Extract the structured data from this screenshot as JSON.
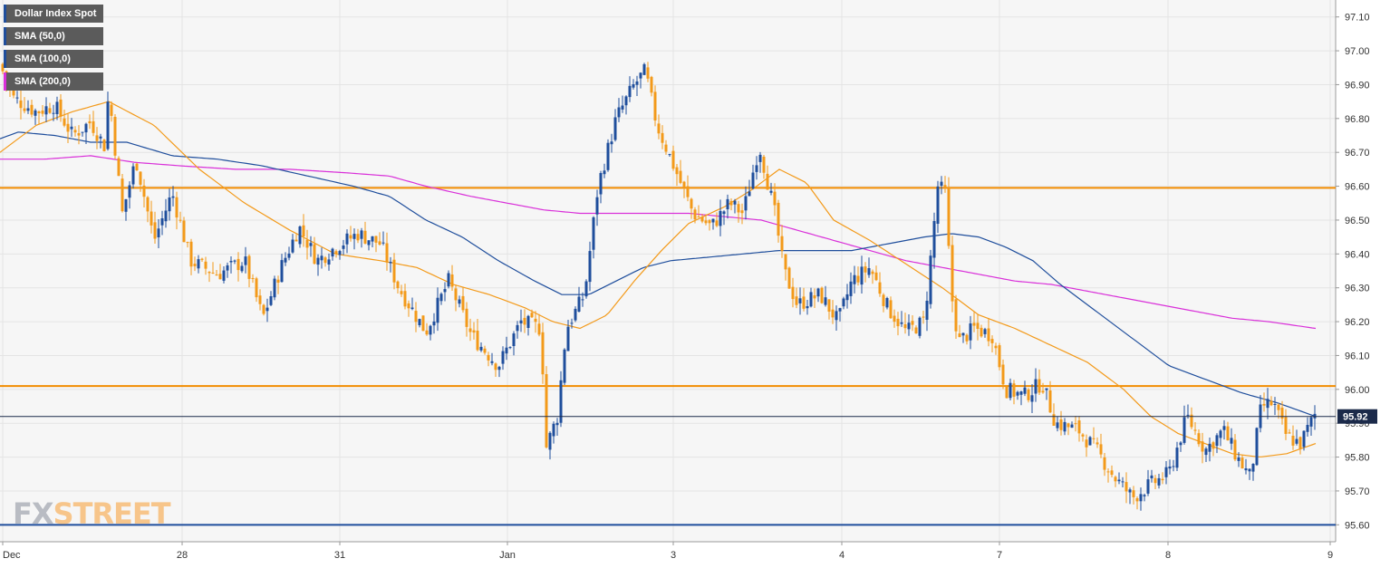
{
  "legend": [
    {
      "label": "Dollar Index Spot",
      "color": "#1f4e9c"
    },
    {
      "label": "SMA (50,0)",
      "color": "#1f4e9c"
    },
    {
      "label": "SMA (100,0)",
      "color": "#1f4e9c"
    },
    {
      "label": "SMA (200,0)",
      "color": "#d930d9"
    }
  ],
  "logo": {
    "part1": "FX",
    "part2": "STREET"
  },
  "chart_data": {
    "type": "candlestick",
    "ylim": [
      95.55,
      97.15
    ],
    "y_ticks": [
      "97.10",
      "97.00",
      "96.90",
      "96.80",
      "96.70",
      "96.60",
      "96.50",
      "96.40",
      "96.30",
      "96.20",
      "96.10",
      "96.00",
      "95.90",
      "95.80",
      "95.70",
      "95.60"
    ],
    "x_ticks": [
      "Dec",
      "28",
      "31",
      "Jan",
      "3",
      "4",
      "7",
      "8",
      "9"
    ],
    "last_price": "95.92",
    "horizontal_levels": [
      {
        "value": 96.595,
        "color": "#f28c00"
      },
      {
        "value": 96.01,
        "color": "#f28c00"
      },
      {
        "value": 95.6,
        "color": "#1f4e9c"
      }
    ],
    "colors": {
      "up": "#1f4e9c",
      "down": "#f39a1a",
      "sma_a": "#f39a1a",
      "sma_b": "#1f4e9c",
      "sma_c": "#d930d9",
      "grid": "#e4e4e4",
      "plot_bg": "#f6f6f6"
    },
    "close_anchors": [
      [
        0,
        96.96
      ],
      [
        15,
        96.86
      ],
      [
        40,
        96.82
      ],
      [
        60,
        96.84
      ],
      [
        80,
        96.75
      ],
      [
        100,
        96.79
      ],
      [
        115,
        96.72
      ],
      [
        120,
        96.88
      ],
      [
        135,
        96.52
      ],
      [
        150,
        96.68
      ],
      [
        170,
        96.44
      ],
      [
        190,
        96.58
      ],
      [
        210,
        96.38
      ],
      [
        240,
        96.34
      ],
      [
        270,
        96.38
      ],
      [
        290,
        96.21
      ],
      [
        310,
        96.36
      ],
      [
        330,
        96.48
      ],
      [
        350,
        96.38
      ],
      [
        370,
        96.42
      ],
      [
        395,
        96.46
      ],
      [
        420,
        96.43
      ],
      [
        440,
        96.3
      ],
      [
        470,
        96.17
      ],
      [
        495,
        96.32
      ],
      [
        520,
        96.16
      ],
      [
        550,
        96.07
      ],
      [
        575,
        96.2
      ],
      [
        597,
        96.18
      ],
      [
        603,
        95.83
      ],
      [
        615,
        95.92
      ],
      [
        625,
        96.18
      ],
      [
        645,
        96.28
      ],
      [
        660,
        96.6
      ],
      [
        680,
        96.8
      ],
      [
        700,
        96.9
      ],
      [
        712,
        96.94
      ],
      [
        725,
        96.78
      ],
      [
        745,
        96.65
      ],
      [
        765,
        96.52
      ],
      [
        785,
        96.48
      ],
      [
        805,
        96.55
      ],
      [
        820,
        96.52
      ],
      [
        838,
        96.72
      ],
      [
        855,
        96.52
      ],
      [
        865,
        96.35
      ],
      [
        880,
        96.25
      ],
      [
        905,
        96.28
      ],
      [
        925,
        96.2
      ],
      [
        940,
        96.32
      ],
      [
        960,
        96.36
      ],
      [
        980,
        96.24
      ],
      [
        1000,
        96.17
      ],
      [
        1020,
        96.2
      ],
      [
        1035,
        96.6
      ],
      [
        1043,
        96.58
      ],
      [
        1050,
        96.28
      ],
      [
        1058,
        96.14
      ],
      [
        1075,
        96.18
      ],
      [
        1095,
        96.16
      ],
      [
        1110,
        96.0
      ],
      [
        1130,
        95.98
      ],
      [
        1150,
        96.02
      ],
      [
        1165,
        95.9
      ],
      [
        1190,
        95.88
      ],
      [
        1210,
        95.82
      ],
      [
        1230,
        95.74
      ],
      [
        1250,
        95.68
      ],
      [
        1270,
        95.72
      ],
      [
        1290,
        95.75
      ],
      [
        1310,
        95.92
      ],
      [
        1330,
        95.82
      ],
      [
        1350,
        95.88
      ],
      [
        1365,
        95.8
      ],
      [
        1380,
        95.74
      ],
      [
        1392,
        95.95
      ],
      [
        1405,
        95.96
      ],
      [
        1420,
        95.86
      ],
      [
        1435,
        95.84
      ],
      [
        1452,
        95.93
      ]
    ],
    "sma_a_anchors": [
      [
        0,
        96.7
      ],
      [
        40,
        96.78
      ],
      [
        80,
        96.82
      ],
      [
        120,
        96.85
      ],
      [
        170,
        96.78
      ],
      [
        220,
        96.65
      ],
      [
        270,
        96.55
      ],
      [
        320,
        96.47
      ],
      [
        370,
        96.4
      ],
      [
        420,
        96.38
      ],
      [
        460,
        96.36
      ],
      [
        500,
        96.31
      ],
      [
        540,
        96.28
      ],
      [
        580,
        96.24
      ],
      [
        610,
        96.2
      ],
      [
        640,
        96.18
      ],
      [
        670,
        96.22
      ],
      [
        700,
        96.32
      ],
      [
        730,
        96.41
      ],
      [
        760,
        96.49
      ],
      [
        800,
        96.54
      ],
      [
        830,
        96.59
      ],
      [
        860,
        96.65
      ],
      [
        890,
        96.61
      ],
      [
        920,
        96.5
      ],
      [
        960,
        96.44
      ],
      [
        1000,
        96.37
      ],
      [
        1040,
        96.3
      ],
      [
        1080,
        96.22
      ],
      [
        1120,
        96.18
      ],
      [
        1160,
        96.13
      ],
      [
        1200,
        96.08
      ],
      [
        1240,
        96.0
      ],
      [
        1270,
        95.92
      ],
      [
        1300,
        95.87
      ],
      [
        1330,
        95.84
      ],
      [
        1360,
        95.81
      ],
      [
        1390,
        95.8
      ],
      [
        1420,
        95.81
      ],
      [
        1452,
        95.84
      ]
    ],
    "sma_b_anchors": [
      [
        0,
        96.74
      ],
      [
        20,
        96.76
      ],
      [
        60,
        96.75
      ],
      [
        100,
        96.73
      ],
      [
        140,
        96.73
      ],
      [
        190,
        96.69
      ],
      [
        240,
        96.68
      ],
      [
        290,
        96.66
      ],
      [
        340,
        96.63
      ],
      [
        390,
        96.6
      ],
      [
        430,
        96.57
      ],
      [
        470,
        96.5
      ],
      [
        510,
        96.45
      ],
      [
        550,
        96.38
      ],
      [
        590,
        96.32
      ],
      [
        620,
        96.28
      ],
      [
        650,
        96.28
      ],
      [
        680,
        96.32
      ],
      [
        710,
        96.36
      ],
      [
        740,
        96.38
      ],
      [
        780,
        96.39
      ],
      [
        820,
        96.4
      ],
      [
        860,
        96.41
      ],
      [
        900,
        96.41
      ],
      [
        940,
        96.41
      ],
      [
        980,
        96.43
      ],
      [
        1020,
        96.45
      ],
      [
        1050,
        96.46
      ],
      [
        1080,
        96.45
      ],
      [
        1110,
        96.42
      ],
      [
        1140,
        96.38
      ],
      [
        1170,
        96.31
      ],
      [
        1210,
        96.23
      ],
      [
        1250,
        96.15
      ],
      [
        1290,
        96.07
      ],
      [
        1330,
        96.03
      ],
      [
        1370,
        95.99
      ],
      [
        1410,
        95.96
      ],
      [
        1452,
        95.92
      ]
    ],
    "sma_c_anchors": [
      [
        0,
        96.68
      ],
      [
        50,
        96.68
      ],
      [
        100,
        96.69
      ],
      [
        150,
        96.67
      ],
      [
        200,
        96.66
      ],
      [
        260,
        96.65
      ],
      [
        320,
        96.65
      ],
      [
        380,
        96.64
      ],
      [
        430,
        96.63
      ],
      [
        470,
        96.6
      ],
      [
        520,
        96.57
      ],
      [
        560,
        96.55
      ],
      [
        600,
        96.53
      ],
      [
        640,
        96.52
      ],
      [
        680,
        96.52
      ],
      [
        720,
        96.52
      ],
      [
        760,
        96.52
      ],
      [
        800,
        96.51
      ],
      [
        840,
        96.5
      ],
      [
        880,
        96.47
      ],
      [
        920,
        96.44
      ],
      [
        960,
        96.41
      ],
      [
        1000,
        96.38
      ],
      [
        1040,
        96.36
      ],
      [
        1080,
        96.34
      ],
      [
        1120,
        96.32
      ],
      [
        1160,
        96.31
      ],
      [
        1200,
        96.29
      ],
      [
        1240,
        96.27
      ],
      [
        1280,
        96.25
      ],
      [
        1320,
        96.23
      ],
      [
        1360,
        96.21
      ],
      [
        1400,
        96.2
      ],
      [
        1452,
        96.18
      ]
    ]
  }
}
